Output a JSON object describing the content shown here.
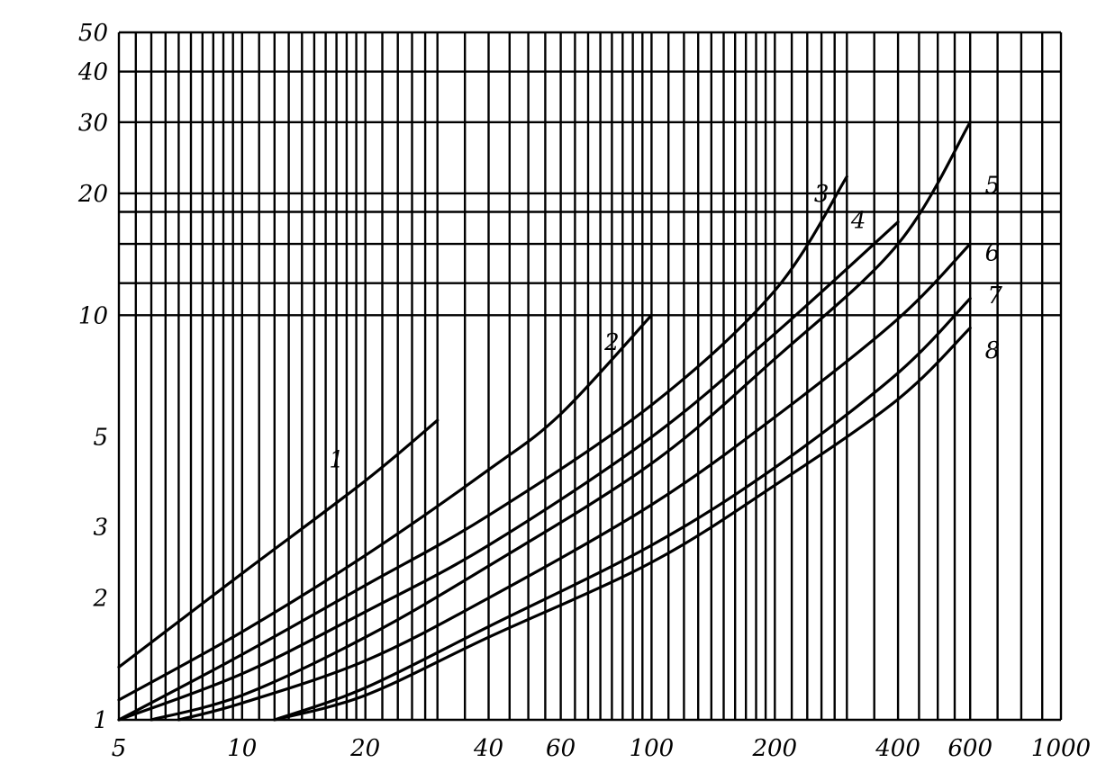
{
  "chart_data": {
    "type": "line",
    "title": "",
    "xlabel": "",
    "ylabel": "",
    "xscale": "log",
    "yscale": "log",
    "xlim": [
      5,
      1000
    ],
    "ylim": [
      1,
      50
    ],
    "grid": true,
    "x_ticks": [
      {
        "value": 5,
        "label": "5"
      },
      {
        "value": 10,
        "label": "10"
      },
      {
        "value": 20,
        "label": "20"
      },
      {
        "value": 40,
        "label": "40"
      },
      {
        "value": 60,
        "label": "60"
      },
      {
        "value": 100,
        "label": "100"
      },
      {
        "value": 200,
        "label": "200"
      },
      {
        "value": 400,
        "label": "400"
      },
      {
        "value": 600,
        "label": "600"
      },
      {
        "value": 1000,
        "label": "1000"
      }
    ],
    "y_ticks": [
      {
        "value": 1,
        "label": "1"
      },
      {
        "value": 2,
        "label": "2"
      },
      {
        "value": 3,
        "label": "3"
      },
      {
        "value": 5,
        "label": "5"
      },
      {
        "value": 10,
        "label": "10"
      },
      {
        "value": 20,
        "label": "20"
      },
      {
        "value": 30,
        "label": "30"
      },
      {
        "value": 40,
        "label": "40"
      },
      {
        "value": 50,
        "label": "50"
      }
    ],
    "x_gridlines": [
      5,
      5.5,
      6,
      6.5,
      7,
      7.5,
      8,
      8.5,
      9,
      9.5,
      10,
      11,
      12,
      13,
      14,
      15,
      16,
      17,
      18,
      19,
      20,
      22,
      24,
      26,
      28,
      30,
      35,
      40,
      45,
      50,
      55,
      60,
      65,
      70,
      75,
      80,
      85,
      90,
      95,
      100,
      110,
      120,
      130,
      140,
      150,
      160,
      170,
      180,
      190,
      200,
      220,
      240,
      260,
      280,
      300,
      350,
      400,
      450,
      500,
      550,
      600,
      700,
      800,
      900,
      1000
    ],
    "y_gridlines": [
      1,
      10,
      12,
      15,
      18,
      20,
      30,
      40,
      50
    ],
    "series": [
      {
        "name": "1",
        "x": [
          5,
          10,
          20,
          30
        ],
        "y": [
          1.35,
          2.3,
          3.9,
          5.5
        ]
      },
      {
        "name": "2",
        "x": [
          5,
          10,
          20,
          40,
          60,
          100
        ],
        "y": [
          1.12,
          1.65,
          2.55,
          4.15,
          5.7,
          10
        ]
      },
      {
        "name": "3",
        "x": [
          5,
          10,
          20,
          40,
          100,
          200,
          300
        ],
        "y": [
          1.0,
          1.45,
          2.15,
          3.2,
          6.0,
          11.5,
          22
        ]
      },
      {
        "name": "4",
        "x": [
          5,
          10,
          20,
          40,
          100,
          200,
          400
        ],
        "y": [
          1.0,
          1.3,
          1.85,
          2.7,
          5.0,
          9.0,
          17
        ]
      },
      {
        "name": "5",
        "x": [
          6,
          10,
          20,
          40,
          100,
          200,
          400,
          600
        ],
        "y": [
          1.0,
          1.15,
          1.6,
          2.4,
          4.3,
          7.8,
          15,
          30
        ]
      },
      {
        "name": "6",
        "x": [
          7,
          10,
          20,
          40,
          100,
          200,
          400,
          600
        ],
        "y": [
          1.0,
          1.1,
          1.4,
          2.0,
          3.4,
          5.6,
          9.8,
          15
        ]
      },
      {
        "name": "7",
        "x": [
          12,
          20,
          40,
          100,
          200,
          400,
          600
        ],
        "y": [
          1.0,
          1.2,
          1.7,
          2.7,
          4.2,
          7.2,
          11
        ]
      },
      {
        "name": "8",
        "x": [
          12,
          20,
          40,
          100,
          200,
          400,
          600
        ],
        "y": [
          1.0,
          1.15,
          1.6,
          2.45,
          3.8,
          6.2,
          9.3
        ]
      }
    ],
    "curve_labels": [
      {
        "text": "1",
        "x": 17,
        "y": 4.4
      },
      {
        "text": "2",
        "x": 80,
        "y": 8.6
      },
      {
        "text": "3",
        "x": 260,
        "y": 20
      },
      {
        "text": "4",
        "x": 320,
        "y": 17.2
      },
      {
        "text": "5",
        "x": 680,
        "y": 21
      },
      {
        "text": "6",
        "x": 680,
        "y": 14.3
      },
      {
        "text": "7",
        "x": 690,
        "y": 11.2
      },
      {
        "text": "8",
        "x": 680,
        "y": 8.2
      }
    ]
  }
}
